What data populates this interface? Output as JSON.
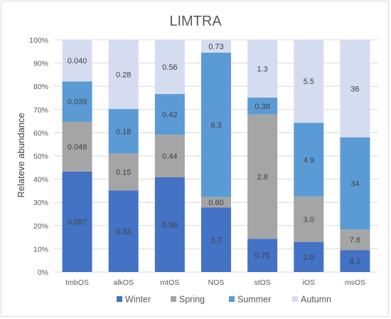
{
  "chart_data": {
    "type": "bar",
    "stacked": "percent",
    "title": "LIMTRA",
    "xlabel": "",
    "ylabel": "Relateve abundance",
    "ylim": [
      0,
      100
    ],
    "yticks": [
      "0%",
      "10%",
      "20%",
      "30%",
      "40%",
      "50%",
      "60%",
      "70%",
      "80%",
      "90%",
      "100%"
    ],
    "grid": true,
    "legend_position": "bottom",
    "categories": [
      "tmbOS",
      "alkOS",
      "mtOS",
      "NOS",
      "stOS",
      "iOS",
      "msOS"
    ],
    "series": [
      {
        "name": "Winter",
        "color": "#4472C4",
        "values": [
          0.097,
          0.33,
          0.98,
          3.7,
          0.75,
          2.0,
          8.1
        ],
        "labels": [
          "0.097",
          "0.33",
          "0.98",
          "3.7",
          "0.75",
          "2.0",
          "8.1"
        ]
      },
      {
        "name": "Spring",
        "color": "#A5A5A5",
        "values": [
          0.048,
          0.15,
          0.44,
          0.6,
          2.8,
          3.0,
          7.6
        ],
        "labels": [
          "0.048",
          "0.15",
          "0.44",
          "0.60",
          "2.8",
          "3.0",
          "7.6"
        ]
      },
      {
        "name": "Summer",
        "color": "#5B9BD5",
        "values": [
          0.039,
          0.18,
          0.42,
          8.3,
          0.38,
          4.9,
          34
        ],
        "labels": [
          "0.039",
          "0.18",
          "0.42",
          "8.3",
          "0.38",
          "4.9",
          "34"
        ]
      },
      {
        "name": "Autumn",
        "color": "#D6DCF0",
        "values": [
          0.04,
          0.28,
          0.56,
          0.73,
          1.3,
          5.5,
          36
        ],
        "labels": [
          "0.040",
          "0.28",
          "0.56",
          "0.73",
          "1.3",
          "5.5",
          "36"
        ]
      }
    ]
  }
}
